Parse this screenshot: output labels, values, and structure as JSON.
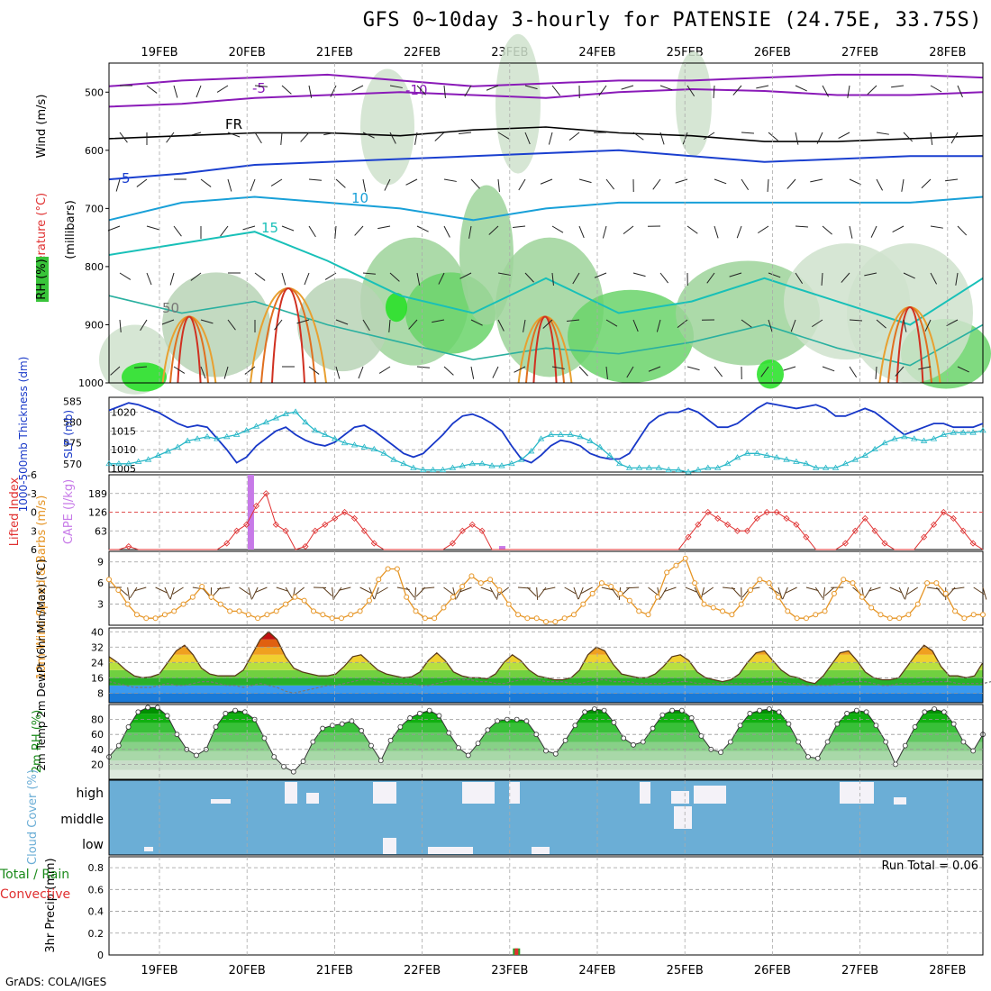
{
  "title": "GFS 0~10day 3-hourly for PATENSIE (24.75E, 33.75S)",
  "credit": "GrADS: COLA/IGES",
  "dates": [
    "19FEB",
    "20FEB",
    "21FEB",
    "22FEB",
    "23FEB",
    "24FEB",
    "25FEB",
    "26FEB",
    "27FEB",
    "28FEB"
  ],
  "colors": {
    "rh_green": "#39c43a",
    "temp_cold": "#1a3fcf",
    "temp_mid": "#18a0d8",
    "temp_warm": "#e08a20",
    "wind_orange": "#e69525",
    "cloud_blue": "#6baed6",
    "cape_purple": "#c77ae8",
    "lifted_red": "#e03030",
    "slp_blue": "#1838c8",
    "thick_cyan": "#2ab8c8"
  },
  "chart_data": [
    {
      "type": "heatmap",
      "panel": "upper-air",
      "ylabel_parts": [
        "Wind (m/s)",
        "Temperature (°C)",
        "RH (%)",
        "(millibars)"
      ],
      "y_ticks": [
        "500",
        "600",
        "700",
        "800",
        "900",
        "1000"
      ],
      "ylim": [
        1000,
        450
      ],
      "contour_labels": [
        "-5",
        "-10",
        "FR",
        "5",
        "10",
        "15",
        "50"
      ],
      "notes": "RH shaded green, temperature contours colored, wind barbs"
    },
    {
      "type": "line",
      "panel": "pressure-thickness",
      "ylabel_left": "1000-500mb Thickness (dm)",
      "ylabel_right": "SLP (mb)",
      "left_ticks": [
        "585",
        "580",
        "575",
        "570"
      ],
      "right_ticks": [
        "1020",
        "1015",
        "1010",
        "1005"
      ],
      "series": [
        {
          "name": "SLP (mb)",
          "values": [
            1020.5,
            1021.5,
            1022.5,
            1022,
            1021,
            1020,
            1018.5,
            1017,
            1016,
            1016.5,
            1016,
            1013,
            1010,
            1006.5,
            1008,
            1011,
            1013,
            1015,
            1016,
            1014,
            1012.5,
            1011.5,
            1011,
            1012,
            1014,
            1016,
            1016.5,
            1015,
            1013,
            1011,
            1009,
            1008,
            1009,
            1011.5,
            1014,
            1017,
            1019,
            1019.5,
            1018.5,
            1017,
            1015,
            1011,
            1007.5,
            1006.5,
            1008.5,
            1011,
            1012.5,
            1012,
            1011,
            1009,
            1008,
            1007.5,
            1007.5,
            1009,
            1013,
            1017,
            1019,
            1020,
            1020,
            1021,
            1020,
            1018,
            1016,
            1016,
            1017,
            1019,
            1021,
            1022.5,
            1022,
            1021.5,
            1021,
            1021.5,
            1022,
            1021,
            1019,
            1019,
            1020,
            1021,
            1020,
            1018,
            1016,
            1014,
            1015,
            1016,
            1017,
            1017,
            1016,
            1016,
            1016,
            1017
          ]
        },
        {
          "name": "1000-500mb Thickness (dm)",
          "values": [
            570,
            570,
            570,
            570.5,
            571,
            572,
            573,
            574,
            575.5,
            576,
            576.5,
            576,
            576.5,
            577,
            578,
            579,
            580,
            581,
            582,
            582.5,
            580,
            578,
            577,
            576,
            575,
            574.5,
            574,
            573.5,
            572.5,
            571,
            570,
            569,
            568.5,
            568.5,
            568.5,
            569,
            569.5,
            570,
            570,
            569.5,
            569.5,
            570,
            571,
            573,
            576,
            577,
            577,
            577,
            576.5,
            575.5,
            574,
            572,
            570,
            569,
            569,
            569,
            569,
            568.5,
            568.5,
            568,
            568.5,
            569,
            569,
            570,
            571.5,
            572.5,
            572.5,
            572,
            571.5,
            571,
            570.5,
            570,
            569,
            569,
            569,
            570,
            571,
            572,
            573.5,
            575,
            576,
            576.5,
            576,
            575.5,
            576,
            577,
            577.5,
            577.5,
            577.5,
            578
          ]
        }
      ]
    },
    {
      "type": "bar",
      "panel": "cape-lifted",
      "ylabel_left": "Lifted Index",
      "ylabel_right": "CAPE (J/kg)",
      "left_ticks": [
        "-6",
        "-3",
        "0",
        "3",
        "6"
      ],
      "right_ticks": [
        "189",
        "126",
        "63"
      ],
      "cape_bars": [
        {
          "x": 14.4,
          "value": 252
        },
        {
          "x": 40.0,
          "value": 12
        }
      ],
      "lifted_index": [
        6,
        6,
        5.5,
        6,
        6,
        6,
        6,
        6,
        6,
        6,
        6,
        6,
        5,
        3,
        2,
        -1,
        -3,
        2,
        3,
        6,
        5.5,
        3,
        2,
        1,
        0,
        1,
        3,
        5,
        6,
        6,
        6,
        6,
        6,
        6,
        6,
        5,
        3,
        2,
        3,
        6,
        6,
        6,
        6,
        6,
        6,
        6,
        6,
        6,
        6,
        6,
        6,
        6,
        6,
        6,
        6,
        6,
        6,
        6,
        6,
        4,
        2,
        0,
        1,
        2,
        3,
        3,
        1,
        0,
        0,
        1,
        2,
        4,
        6,
        6,
        6,
        5,
        3,
        1,
        3,
        5,
        6,
        6,
        6,
        4,
        2,
        0,
        1,
        3,
        5,
        6
      ]
    },
    {
      "type": "line",
      "panel": "10m-wind",
      "ylabel": "10m Wind Speed & Barbs (m/s)",
      "y_ticks": [
        "9",
        "6",
        "3"
      ],
      "series": [
        {
          "name": "10m Wind Speed",
          "values": [
            6.5,
            5,
            3,
            1.5,
            1,
            1,
            1.5,
            2,
            3,
            4,
            5.5,
            4,
            3,
            2,
            2,
            1.5,
            1,
            1.5,
            2,
            3,
            4,
            3.5,
            2,
            1.5,
            1,
            1,
            1.5,
            2,
            3.5,
            6.5,
            8,
            8,
            4,
            2,
            1,
            1,
            2.5,
            4,
            5.5,
            7,
            6,
            6.5,
            5,
            3,
            1.5,
            1,
            1,
            0.5,
            0.5,
            1,
            1.5,
            3,
            4.5,
            6,
            5.5,
            4.5,
            3.5,
            2,
            1.5,
            4,
            7.5,
            8.5,
            9.5,
            6,
            3,
            2.5,
            2,
            1.5,
            3,
            5,
            6.5,
            6,
            4,
            2,
            1,
            1,
            1.5,
            2,
            4.5,
            6.5,
            6,
            4,
            2.5,
            1.5,
            1,
            1,
            1.5,
            3,
            6,
            6,
            4.5,
            2,
            1,
            1.5,
            1.5
          ]
        }
      ]
    },
    {
      "type": "area",
      "panel": "temperature",
      "ylabel": "2m Temp 2m DewPt (6hr Min/Max) (°C)",
      "y_ticks": [
        "40",
        "32",
        "24",
        "16",
        "8"
      ],
      "series": [
        {
          "name": "2m Temp",
          "values": [
            27,
            24,
            20,
            17,
            16,
            16.5,
            18,
            24,
            30,
            33,
            28,
            21,
            18,
            17,
            17,
            17,
            20,
            28,
            36,
            40,
            36,
            27,
            21,
            19,
            18,
            17,
            17,
            18,
            22,
            27,
            28,
            24,
            20,
            18,
            17,
            16,
            16.5,
            19,
            25,
            29,
            25,
            19,
            17,
            16,
            16,
            15.5,
            18,
            24,
            28,
            25,
            20,
            17,
            16,
            15,
            15,
            16,
            20,
            28,
            32,
            30,
            23,
            18,
            17,
            16,
            16,
            18,
            22,
            27,
            28,
            25,
            19,
            16,
            15,
            14,
            15,
            18,
            24,
            29,
            30,
            25,
            20,
            17,
            16,
            14,
            13,
            17,
            23,
            29,
            30,
            25,
            19,
            16,
            15,
            15,
            16,
            22,
            28,
            33,
            30,
            22,
            17,
            17,
            16,
            17,
            24
          ]
        },
        {
          "name": "2m DewPt",
          "values": [
            14,
            13,
            12,
            11,
            11,
            11,
            12,
            13,
            12,
            12,
            13,
            14,
            14,
            13,
            12,
            12,
            11,
            12,
            13,
            12,
            11,
            9,
            8,
            9,
            10,
            11,
            12,
            12,
            13,
            14,
            15,
            15,
            14,
            13,
            13,
            13,
            13,
            12,
            12,
            13,
            14,
            15,
            15,
            15,
            14,
            14,
            13,
            13,
            14,
            15,
            15,
            15,
            14,
            14,
            14,
            13,
            13,
            14,
            15,
            15,
            14,
            14,
            14,
            13,
            13,
            13,
            13,
            14,
            14,
            14,
            13,
            13,
            13,
            13,
            13,
            13,
            13,
            13,
            14,
            14,
            14,
            13,
            13,
            12,
            12,
            12,
            12,
            13,
            14,
            14,
            14,
            13,
            12,
            12,
            13,
            13,
            13,
            14,
            14,
            14,
            14,
            13,
            13,
            13,
            13,
            14
          ]
        }
      ]
    },
    {
      "type": "area",
      "panel": "relative-humidity",
      "ylabel": "2m RH (%)",
      "y_ticks": [
        "80",
        "60",
        "40",
        "20"
      ],
      "series": [
        {
          "name": "2m RH",
          "values": [
            30,
            45,
            70,
            90,
            96,
            96,
            85,
            60,
            40,
            32,
            40,
            70,
            88,
            92,
            90,
            80,
            55,
            30,
            17,
            10,
            24,
            50,
            68,
            72,
            74,
            78,
            65,
            45,
            25,
            52,
            70,
            82,
            88,
            92,
            85,
            62,
            42,
            32,
            48,
            66,
            78,
            80,
            80,
            78,
            60,
            38,
            34,
            52,
            72,
            90,
            94,
            92,
            76,
            55,
            46,
            50,
            68,
            86,
            92,
            92,
            82,
            58,
            40,
            36,
            50,
            72,
            88,
            92,
            94,
            90,
            74,
            50,
            30,
            28,
            50,
            74,
            88,
            92,
            90,
            72,
            50,
            20,
            45,
            70,
            90,
            94,
            90,
            74,
            50,
            38,
            60
          ]
        }
      ]
    },
    {
      "type": "bar",
      "panel": "cloud-cover",
      "ylabel": "Cloud Cover (%)",
      "y_ticks": [
        "high",
        "middle",
        "low"
      ],
      "notes": "low/middle/high cloud fractions shown as white blocks on blue"
    },
    {
      "type": "bar",
      "panel": "precip",
      "ylabel_parts": [
        "Total / Rain",
        "Convective",
        "3hr Precip (mm)"
      ],
      "y_ticks": [
        "0.8",
        "0.6",
        "0.4",
        "0.2",
        "0"
      ],
      "ylim": [
        0,
        0.9
      ],
      "annotation": "Run Total = 0.06",
      "bars": [
        {
          "x": 41.5,
          "total": 0.06,
          "convective": 0.06
        }
      ]
    }
  ]
}
